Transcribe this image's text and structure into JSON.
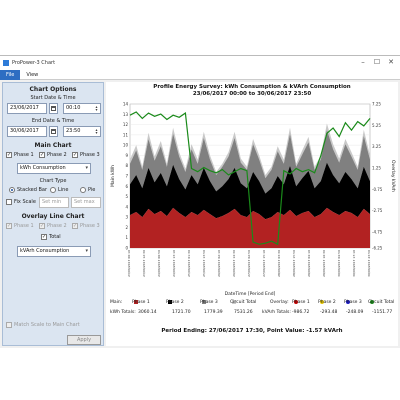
{
  "window": {
    "title": "ProPower-3 Chart",
    "controls": [
      "–",
      "☐",
      "✕"
    ]
  },
  "menu": {
    "file": "File",
    "view": "View"
  },
  "options": {
    "heading": "Chart Options",
    "start_label": "Start Date & Time",
    "start_date": "23/06/2017",
    "start_time": "00:10",
    "end_label": "End Date & Time",
    "end_date": "30/06/2017",
    "end_time": "23:50",
    "main_chart_label": "Main Chart",
    "phase1": "Phase 1",
    "phase2": "Phase 2",
    "phase3": "Phase 3",
    "main_select": "kWh Consumption",
    "chart_type_label": "Chart Type",
    "type_stacked": "Stacked Bar",
    "type_line": "Line",
    "type_pie": "Pie",
    "fix_scale": "Fix Scale",
    "set_min": "Set min",
    "set_max": "Set max",
    "overlay_label": "Overlay Line Chart",
    "ov_phase1": "Phase 1",
    "ov_phase2": "Phase 2",
    "ov_phase3": "Phase 3",
    "ov_total": "Total",
    "overlay_select": "kVArh Consumption",
    "match_scale": "Match Scale to Main Chart",
    "apply": "Apply"
  },
  "chart_data": {
    "type": "area",
    "title": "Profile Energy Survey: kWh Consumption & kVArh Consumption",
    "subtitle": "23/06/2017 00:00 to 30/06/2017 23:50",
    "xlabel": "DateTime [Period End]",
    "ylabel": "Main kWh",
    "y2label": "Overlay kVArh",
    "ylim": [
      0,
      14
    ],
    "y2lim": [
      -6.25,
      7.25
    ],
    "y_ticks": [
      "14",
      "13",
      "12",
      "11",
      "10",
      "9",
      "8",
      "7",
      "6",
      "5",
      "4",
      "3",
      "2",
      "1",
      "0"
    ],
    "y2_ticks": [
      "7.25",
      "5.25",
      "3.25",
      "1.25",
      "-0.75",
      "-2.75",
      "-4.75",
      "-6.25"
    ],
    "x_ticks": [
      "23/06/2017 00:10",
      "23/06/2017 12:30",
      "24/06/2017 00:50",
      "24/06/2017 13:10",
      "25/06/2017 01:30",
      "25/06/2017 13:50",
      "26/06/2017 02:10",
      "26/06/2017 14:30",
      "27/06/2017 02:50",
      "27/06/2017 15:10",
      "28/06/2017 03:30",
      "28/06/2017 15:50",
      "29/06/2017 04:10",
      "29/06/2017 16:30",
      "30/06/2017 04:50",
      "30/06/2017 17:10",
      "30/06/2017 23:50"
    ],
    "series": [
      {
        "name": "Phase 1",
        "color": "#b22222",
        "values": [
          3.2,
          3.5,
          3.0,
          3.8,
          3.3,
          3.6,
          3.1,
          3.9,
          3.4,
          3.0,
          3.5,
          3.2,
          3.7,
          3.3,
          2.9,
          3.1,
          3.4,
          3.8,
          3.2,
          3.0,
          3.6,
          3.3,
          2.8,
          3.0,
          3.5,
          3.2,
          3.7,
          3.1,
          3.4,
          3.6,
          3.0,
          3.3,
          3.9,
          3.5,
          3.2,
          3.6,
          3.4,
          3.0,
          3.8,
          3.3
        ]
      },
      {
        "name": "Phase 2",
        "color": "#000000",
        "values": [
          3.0,
          3.6,
          2.8,
          4.0,
          3.1,
          3.7,
          2.9,
          4.2,
          3.3,
          2.7,
          3.6,
          3.0,
          4.1,
          3.2,
          2.6,
          2.9,
          3.3,
          4.0,
          3.1,
          2.8,
          3.8,
          3.2,
          2.5,
          2.8,
          3.5,
          3.0,
          4.3,
          2.9,
          3.4,
          3.9,
          2.8,
          3.2,
          4.4,
          3.6,
          3.1,
          3.8,
          3.3,
          2.8,
          4.1,
          3.2
        ]
      },
      {
        "name": "Phase 3",
        "color": "#808080",
        "values": [
          2.0,
          2.4,
          1.8,
          2.8,
          2.1,
          2.6,
          1.9,
          3.0,
          2.2,
          1.7,
          2.5,
          2.0,
          2.9,
          2.1,
          1.6,
          1.9,
          2.2,
          2.9,
          2.0,
          1.8,
          2.7,
          2.1,
          1.5,
          1.8,
          2.4,
          2.0,
          3.1,
          1.9,
          2.3,
          2.8,
          1.8,
          2.1,
          3.2,
          2.5,
          2.0,
          2.7,
          2.2,
          1.8,
          3.0,
          2.1
        ]
      },
      {
        "name": "Circuit Total",
        "color": "#c9c9c9",
        "values": [
          0.4,
          0.5,
          0.3,
          0.6,
          0.4,
          0.5,
          0.3,
          0.6,
          0.4,
          0.3,
          0.5,
          0.4,
          0.6,
          0.4,
          0.3,
          0.3,
          0.4,
          0.6,
          0.4,
          0.3,
          0.5,
          0.4,
          0.3,
          0.3,
          0.5,
          0.4,
          0.6,
          0.3,
          0.4,
          0.5,
          0.3,
          0.4,
          0.6,
          0.5,
          0.4,
          0.5,
          0.4,
          0.3,
          0.6,
          0.4
        ]
      }
    ],
    "overlay": {
      "name": "Circuit Total",
      "color": "#1a8a1a",
      "values": [
        6.2,
        6.5,
        5.9,
        6.4,
        6.1,
        6.3,
        5.8,
        6.2,
        6.0,
        6.4,
        1.2,
        0.9,
        1.3,
        1.0,
        0.8,
        1.1,
        0.6,
        0.9,
        1.2,
        1.0,
        -5.7,
        -5.9,
        -5.8,
        -5.6,
        -5.9,
        1.0,
        0.7,
        1.2,
        0.9,
        1.1,
        0.8,
        2.4,
        4.5,
        5.0,
        4.2,
        5.5,
        4.8,
        5.6,
        5.2,
        5.9
      ]
    },
    "legend": {
      "main_label": "Main:",
      "overlay_label": "Overlay:",
      "items": [
        "Phase 1",
        "Phase 2",
        "Phase 3",
        "Circuit Total"
      ],
      "overlay_items": [
        "Phase 1",
        "Phase 2",
        "Phase 3",
        "Circuit Total"
      ],
      "overlay_colors": [
        "#cc0000",
        "#e6c700",
        "#1a1acc",
        "#1a8a1a"
      ],
      "totals_label": "kWh Totals:",
      "totals": [
        "3060.14",
        "1721.70",
        "1779.39",
        "7531.26"
      ],
      "overlay_totals_label": "kVArh Totals:",
      "overlay_totals": [
        "-986.72",
        "-293.48",
        "-248.09",
        "-1151.77"
      ]
    },
    "footer": "Period Ending: 27/06/2017 17:30, Point Value: -1.57 kVArh"
  }
}
